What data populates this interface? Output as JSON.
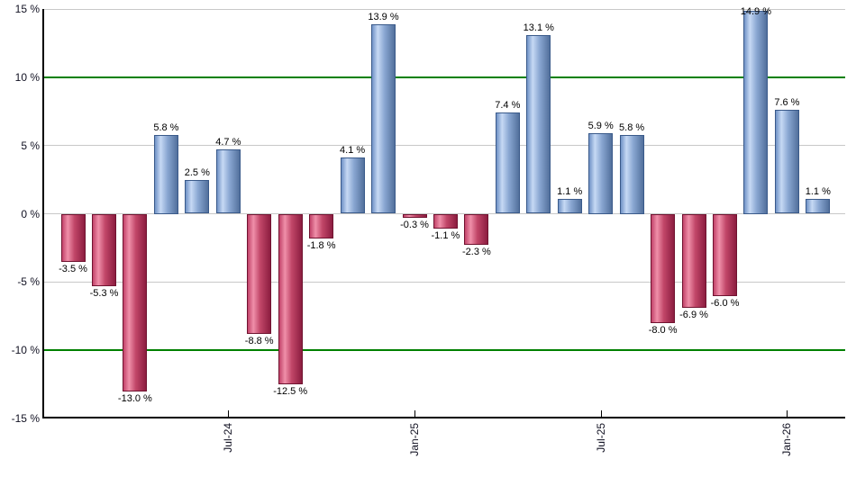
{
  "chart_data": {
    "type": "bar",
    "title": "",
    "unit": "%",
    "ylim": [
      -15,
      15
    ],
    "grid": true,
    "legend": false,
    "y_axis": {
      "ticks": [
        {
          "value": 15,
          "label": "15 %"
        },
        {
          "value": 10,
          "label": "10 %"
        },
        {
          "value": 5,
          "label": "5 %"
        },
        {
          "value": 0,
          "label": "0 %"
        },
        {
          "value": -5,
          "label": "-5 %"
        },
        {
          "value": -10,
          "label": "-10 %"
        },
        {
          "value": -15,
          "label": "-15 %"
        }
      ]
    },
    "x_axis": {
      "ticks": [
        {
          "label": "Jul-24",
          "bar_index": 5
        },
        {
          "label": "Jan-25",
          "bar_index": 11
        },
        {
          "label": "Jul-25",
          "bar_index": 17
        },
        {
          "label": "Jan-26",
          "bar_index": 23
        }
      ]
    },
    "gridline_values": [
      15,
      5,
      0,
      -5
    ],
    "reference_lines": [
      {
        "value": 10,
        "color": "#008000"
      },
      {
        "value": -10,
        "color": "#008000"
      }
    ],
    "bars": [
      {
        "value": -3.5,
        "label": "-3.5 %"
      },
      {
        "value": -5.3,
        "label": "-5.3 %"
      },
      {
        "value": -13.0,
        "label": "-13.0 %"
      },
      {
        "value": 5.8,
        "label": "5.8 %"
      },
      {
        "value": 2.5,
        "label": "2.5 %"
      },
      {
        "value": 4.7,
        "label": "4.7 %"
      },
      {
        "value": -8.8,
        "label": "-8.8 %"
      },
      {
        "value": -12.5,
        "label": "-12.5 %"
      },
      {
        "value": -1.8,
        "label": "-1.8 %"
      },
      {
        "value": 4.1,
        "label": "4.1 %"
      },
      {
        "value": 13.9,
        "label": "13.9 %"
      },
      {
        "value": -0.3,
        "label": "-0.3 %"
      },
      {
        "value": -1.1,
        "label": "-1.1 %"
      },
      {
        "value": -2.3,
        "label": "-2.3 %"
      },
      {
        "value": 7.4,
        "label": "7.4 %"
      },
      {
        "value": 13.1,
        "label": "13.1 %"
      },
      {
        "value": 1.1,
        "label": "1.1 %"
      },
      {
        "value": 5.9,
        "label": "5.9 %"
      },
      {
        "value": 5.8,
        "label": "5.8 %"
      },
      {
        "value": -8.0,
        "label": "-8.0 %"
      },
      {
        "value": -6.9,
        "label": "-6.9 %"
      },
      {
        "value": -6.0,
        "label": "-6.0 %"
      },
      {
        "value": 14.9,
        "label": "14.9 %"
      },
      {
        "value": 7.6,
        "label": "7.6 %"
      },
      {
        "value": 1.1,
        "label": "1.1 %"
      }
    ],
    "colors": {
      "positive_fill": [
        "#7092c6",
        "#c6d9f4",
        "#8aa7d2",
        "#52709c"
      ],
      "positive_border": "#3a5a8a",
      "negative_fill": [
        "#c2436a",
        "#ef8fa9",
        "#c14668",
        "#8c1d40"
      ],
      "negative_border": "#701330",
      "grid": "#c8c8c8",
      "reference": "#008000",
      "axis": "#000000",
      "text": "#000000"
    }
  }
}
